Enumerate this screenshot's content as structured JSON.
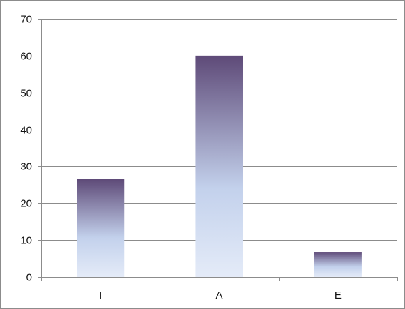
{
  "chart_data": {
    "type": "bar",
    "categories": [
      "I",
      "A",
      "E"
    ],
    "values": [
      26.5,
      60,
      6.8
    ],
    "ylim": [
      0,
      70
    ],
    "yticks": [
      0,
      10,
      20,
      30,
      40,
      50,
      60,
      70
    ],
    "grid": true,
    "legend": "none",
    "colors": {
      "bar_top": "#5e4a78",
      "bar_mid": "#c3d1ec",
      "bar_bottom": "#e4ebf8",
      "grid": "#8c8c8c",
      "axis": "#8c8c8c"
    }
  }
}
